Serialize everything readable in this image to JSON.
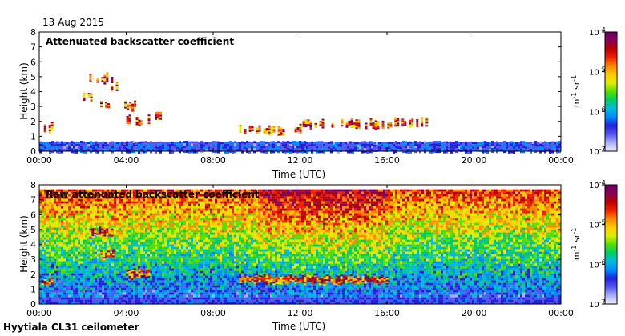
{
  "date": "13 Aug 2015",
  "site_title": "Hyytiala CL31 ceilometer",
  "colormap": [
    "#eeeeff",
    "#aab0ff",
    "#5555ee",
    "#2222dd",
    "#0088ff",
    "#00bbdd",
    "#00cc66",
    "#55dd00",
    "#ddee00",
    "#ffcc00",
    "#ff8800",
    "#ee2200",
    "#bb0000",
    "#880055",
    "#660066"
  ],
  "chart_data": [
    {
      "type": "heatmap",
      "title": "Attenuated backscatter coefficient",
      "xlabel": "Time (UTC)",
      "ylabel": "Height (km)",
      "xlim_hours": [
        0,
        24
      ],
      "xticks": [
        "00:00",
        "04:00",
        "08:00",
        "12:00",
        "16:00",
        "20:00",
        "00:00"
      ],
      "ylim": [
        0,
        8
      ],
      "yticks": [
        "0",
        "1",
        "2",
        "3",
        "4",
        "5",
        "6",
        "7",
        "8"
      ],
      "colorbar": {
        "label_text": "m",
        "label_exp1": "-1",
        "label_mid": " sr",
        "label_exp2": "-1",
        "ticks": [
          {
            "base": "10",
            "exp": "-7"
          },
          {
            "base": "10",
            "exp": "-6"
          },
          {
            "base": "10",
            "exp": "-5"
          },
          {
            "base": "10",
            "exp": "-4"
          }
        ],
        "range_log10": [
          -7,
          -4
        ]
      },
      "features": {
        "boundary_layer_top_km": 0.6,
        "cloud_layers": [
          {
            "t0": 0.1,
            "t1": 0.6,
            "h": 1.4
          },
          {
            "t0": 1.9,
            "t1": 2.6,
            "h": 3.6
          },
          {
            "t0": 2.3,
            "t1": 3.4,
            "h": 4.7
          },
          {
            "t0": 2.8,
            "t1": 3.2,
            "h": 3.0
          },
          {
            "t0": 3.3,
            "t1": 3.6,
            "h": 4.2
          },
          {
            "t0": 3.8,
            "t1": 4.5,
            "h": 2.9
          },
          {
            "t0": 4.0,
            "t1": 5.0,
            "h": 1.9
          },
          {
            "t0": 5.2,
            "t1": 5.6,
            "h": 2.2
          },
          {
            "t0": 9.2,
            "t1": 12.0,
            "h": 1.3
          },
          {
            "t0": 12.0,
            "t1": 15.9,
            "h": 1.7
          },
          {
            "t0": 15.9,
            "t1": 17.8,
            "h": 1.7
          }
        ]
      }
    },
    {
      "type": "heatmap",
      "title": "Raw attenuated backscatter coefficient",
      "xlabel": "Time (UTC)",
      "ylabel": "Height (km)",
      "xlim_hours": [
        0,
        24
      ],
      "xticks": [
        "00:00",
        "04:00",
        "08:00",
        "12:00",
        "16:00",
        "20:00",
        "00:00"
      ],
      "ylim": [
        0,
        8
      ],
      "yticks": [
        "0",
        "1",
        "2",
        "3",
        "4",
        "5",
        "6",
        "7",
        "8"
      ],
      "colorbar": {
        "label_text": "m",
        "label_exp1": "-1",
        "label_mid": " sr",
        "label_exp2": "-1",
        "ticks": [
          {
            "base": "10",
            "exp": "-7"
          },
          {
            "base": "10",
            "exp": "-6"
          },
          {
            "base": "10",
            "exp": "-5"
          },
          {
            "base": "10",
            "exp": "-4"
          }
        ],
        "range_log10": [
          -7,
          -4
        ]
      },
      "features": {
        "noise_increases_with_height": true,
        "boundary_layer_top_km": 0.6,
        "cloud_layers": [
          {
            "t0": 0.1,
            "t1": 0.6,
            "h": 1.4
          },
          {
            "t0": 2.3,
            "t1": 3.4,
            "h": 4.7
          },
          {
            "t0": 2.8,
            "t1": 3.4,
            "h": 3.2
          },
          {
            "t0": 4.0,
            "t1": 5.0,
            "h": 1.9
          },
          {
            "t0": 9.2,
            "t1": 16.0,
            "h": 1.5
          }
        ]
      }
    }
  ]
}
